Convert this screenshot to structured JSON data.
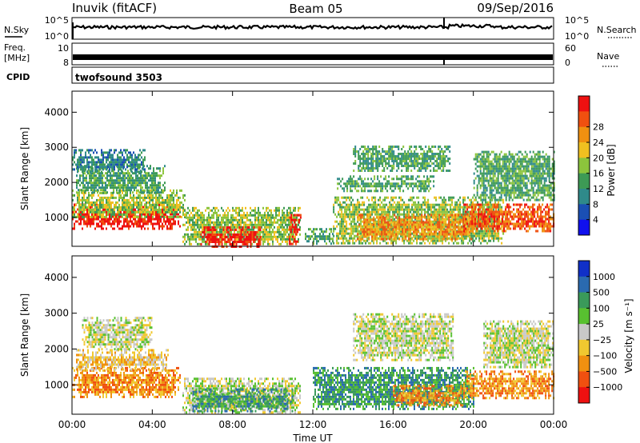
{
  "header": {
    "station": "Inuvik (fitACF)",
    "beam": "Beam 05",
    "date": "09/Sep/2016"
  },
  "summary": {
    "nsky_label": "N.Sky",
    "nsky_ticks": [
      "10^5",
      "10^0"
    ],
    "nsearch_label": "N.Search",
    "nsearch_ticks": [
      "10^5",
      "10^0"
    ],
    "freq_label_top": "Freq.",
    "freq_label_bottom": "[MHz]",
    "freq_ticks": [
      "10",
      "8"
    ],
    "nave_label": "Nave",
    "nave_ticks": [
      "60",
      "0"
    ],
    "cpid_label": "CPID",
    "cpid_value": "twofsound 3503"
  },
  "colors": {
    "power_scale": [
      "#1010ee",
      "#1a4fb4",
      "#2f8a8a",
      "#3d9a55",
      "#8cc43c",
      "#f0c020",
      "#f09010",
      "#f05010",
      "#ee1111"
    ],
    "velocity_scale": [
      "#ee1111",
      "#f05010",
      "#f09010",
      "#f0c830",
      "#c8c8c8",
      "#58c030",
      "#3a9a5a",
      "#2a6ab0",
      "#1030c8"
    ]
  },
  "chart_data": [
    {
      "type": "heatmap",
      "name": "power",
      "ylabel": "Slant Range [km]",
      "xlabel": "Time UT",
      "x_ticks": [
        "00:00",
        "04:00",
        "08:00",
        "12:00",
        "16:00",
        "20:00",
        "00:00"
      ],
      "x_range_hours": [
        0,
        24
      ],
      "ylim": [
        180,
        4600
      ],
      "y_ticks": [
        1000,
        2000,
        3000,
        4000
      ],
      "colorbar_label": "Power [dB]",
      "colorbar_ticks": [
        "4",
        "8",
        "12",
        "16",
        "20",
        "24",
        "28"
      ],
      "regions": [
        {
          "t0": 0.0,
          "t1": 5.4,
          "r0": 650,
          "r1": 1400,
          "level": 8
        },
        {
          "t0": 0.0,
          "t1": 5.6,
          "r0": 1000,
          "r1": 1800,
          "level": 4
        },
        {
          "t0": 0.2,
          "t1": 4.6,
          "r0": 1700,
          "r1": 2500,
          "level": 3
        },
        {
          "t0": 0.0,
          "t1": 3.6,
          "r0": 2300,
          "r1": 2950,
          "level": 2
        },
        {
          "t0": 5.5,
          "t1": 11.4,
          "r0": 250,
          "r1": 1300,
          "level": 4
        },
        {
          "t0": 6.4,
          "t1": 9.4,
          "r0": 200,
          "r1": 750,
          "level": 8
        },
        {
          "t0": 10.8,
          "t1": 11.4,
          "r0": 250,
          "r1": 1100,
          "level": 8
        },
        {
          "t0": 11.6,
          "t1": 13.0,
          "r0": 250,
          "r1": 700,
          "level": 3
        },
        {
          "t0": 13.0,
          "t1": 21.5,
          "r0": 300,
          "r1": 1600,
          "level": 4
        },
        {
          "t0": 14.2,
          "t1": 20.0,
          "r0": 400,
          "r1": 1100,
          "level": 6
        },
        {
          "t0": 13.2,
          "t1": 18.0,
          "r0": 1750,
          "r1": 2200,
          "level": 3
        },
        {
          "t0": 14.0,
          "t1": 18.8,
          "r0": 2300,
          "r1": 3050,
          "level": 3
        },
        {
          "t0": 19.5,
          "t1": 24.0,
          "r0": 600,
          "r1": 1400,
          "level": 7
        },
        {
          "t0": 20.0,
          "t1": 24.0,
          "r0": 1500,
          "r1": 2900,
          "level": 3
        }
      ]
    },
    {
      "type": "heatmap",
      "name": "velocity",
      "ylabel": "Slant Range [km]",
      "xlabel": "Time UT",
      "x_ticks": [
        "00:00",
        "04:00",
        "08:00",
        "12:00",
        "16:00",
        "20:00",
        "00:00"
      ],
      "x_range_hours": [
        0,
        24
      ],
      "ylim": [
        180,
        4600
      ],
      "y_ticks": [
        1000,
        2000,
        3000,
        4000
      ],
      "colorbar_label": "Velocity [m s⁻¹]",
      "colorbar_ticks": [
        "1000",
        "500",
        "100",
        "25",
        "−25",
        "−100",
        "−500",
        "−1000"
      ],
      "regions": [
        {
          "t0": 0.0,
          "t1": 5.4,
          "r0": 650,
          "r1": 1500,
          "level": 2
        },
        {
          "t0": 0.2,
          "t1": 4.8,
          "r0": 1400,
          "r1": 2000,
          "level": 3
        },
        {
          "t0": 0.5,
          "t1": 4.0,
          "r0": 2000,
          "r1": 2900,
          "level": 4
        },
        {
          "t0": 5.5,
          "t1": 11.4,
          "r0": 250,
          "r1": 1200,
          "level": 4
        },
        {
          "t0": 6.0,
          "t1": 11.0,
          "r0": 250,
          "r1": 900,
          "level": 6
        },
        {
          "t0": 12.0,
          "t1": 20.0,
          "r0": 350,
          "r1": 1500,
          "level": 6
        },
        {
          "t0": 14.0,
          "t1": 19.0,
          "r0": 1700,
          "r1": 3000,
          "level": 4
        },
        {
          "t0": 16.0,
          "t1": 19.5,
          "r0": 400,
          "r1": 1000,
          "level": 2
        },
        {
          "t0": 19.5,
          "t1": 24.0,
          "r0": 600,
          "r1": 1400,
          "level": 2
        },
        {
          "t0": 20.5,
          "t1": 24.0,
          "r0": 1500,
          "r1": 2800,
          "level": 4
        }
      ]
    }
  ]
}
